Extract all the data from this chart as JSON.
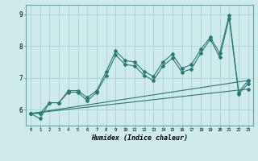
{
  "xlabel": "Humidex (Indice chaleur)",
  "bg_color": "#ceeaea",
  "grid_color": "#aacccc",
  "line_color": "#2a7a72",
  "xlim": [
    -0.5,
    23.5
  ],
  "ylim": [
    5.5,
    9.3
  ],
  "yticks": [
    6,
    7,
    8,
    9
  ],
  "xticks": [
    0,
    1,
    2,
    3,
    4,
    5,
    6,
    7,
    8,
    9,
    10,
    11,
    12,
    13,
    14,
    15,
    16,
    17,
    18,
    19,
    20,
    21,
    22,
    23
  ],
  "series1_x": [
    0,
    1,
    2,
    3,
    4,
    5,
    6,
    7,
    8,
    9,
    10,
    11,
    12,
    13,
    14,
    15,
    16,
    17,
    18,
    19,
    20,
    21,
    22,
    23
  ],
  "series1_y": [
    5.88,
    5.88,
    6.22,
    6.22,
    6.6,
    6.6,
    6.38,
    6.6,
    7.2,
    7.85,
    7.55,
    7.5,
    7.2,
    7.05,
    7.5,
    7.75,
    7.3,
    7.42,
    7.9,
    8.28,
    7.78,
    8.98,
    6.55,
    6.92
  ],
  "series2_x": [
    0,
    1,
    2,
    3,
    4,
    5,
    6,
    7,
    8,
    9,
    10,
    11,
    12,
    13,
    14,
    15,
    16,
    17,
    18,
    19,
    20,
    21,
    22,
    23
  ],
  "series2_y": [
    5.88,
    5.72,
    6.22,
    6.22,
    6.55,
    6.55,
    6.28,
    6.55,
    7.08,
    7.72,
    7.42,
    7.38,
    7.08,
    6.92,
    7.38,
    7.62,
    7.18,
    7.28,
    7.78,
    8.22,
    7.65,
    8.88,
    6.5,
    6.82
  ],
  "series3_x": [
    0,
    23
  ],
  "series3_y": [
    5.88,
    6.92
  ],
  "series4_x": [
    0,
    23
  ],
  "series4_y": [
    5.88,
    6.65
  ]
}
